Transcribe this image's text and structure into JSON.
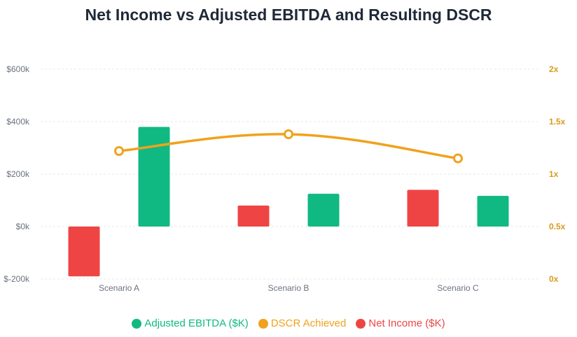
{
  "chart_data": {
    "type": "bar",
    "title": "Net Income vs Adjusted EBITDA and Resulting DSCR",
    "categories": [
      "Scenario A",
      "Scenario B",
      "Scenario C"
    ],
    "series": [
      {
        "name": "Net Income ($K)",
        "type": "bar",
        "axis": "left",
        "color": "#ef4444",
        "values": [
          -190,
          80,
          140
        ]
      },
      {
        "name": "Adjusted EBITDA ($K)",
        "type": "bar",
        "axis": "left",
        "color": "#10b981",
        "values": [
          380,
          125,
          117
        ]
      },
      {
        "name": "DSCR Achieved",
        "type": "line",
        "axis": "right",
        "color": "#f0a21e",
        "values": [
          1.22,
          1.38,
          1.15
        ]
      }
    ],
    "left_axis": {
      "ylim": [
        -200,
        600
      ],
      "ticks": [
        -200,
        0,
        200,
        400,
        600
      ],
      "tick_labels": [
        "$-200k",
        "$0k",
        "$200k",
        "$400k",
        "$600k"
      ]
    },
    "right_axis": {
      "ylim": [
        0,
        2
      ],
      "ticks": [
        0,
        0.5,
        1,
        1.5,
        2
      ],
      "tick_labels": [
        "0x",
        "0.5x",
        "1x",
        "1.5x",
        "2x"
      ]
    },
    "grid": true,
    "legend_position": "bottom",
    "legend": [
      {
        "label": "Adjusted EBITDA ($K)",
        "color": "#10b981"
      },
      {
        "label": "DSCR Achieved",
        "color": "#f0a21e"
      },
      {
        "label": "Net Income ($K)",
        "color": "#ef4444"
      }
    ]
  }
}
